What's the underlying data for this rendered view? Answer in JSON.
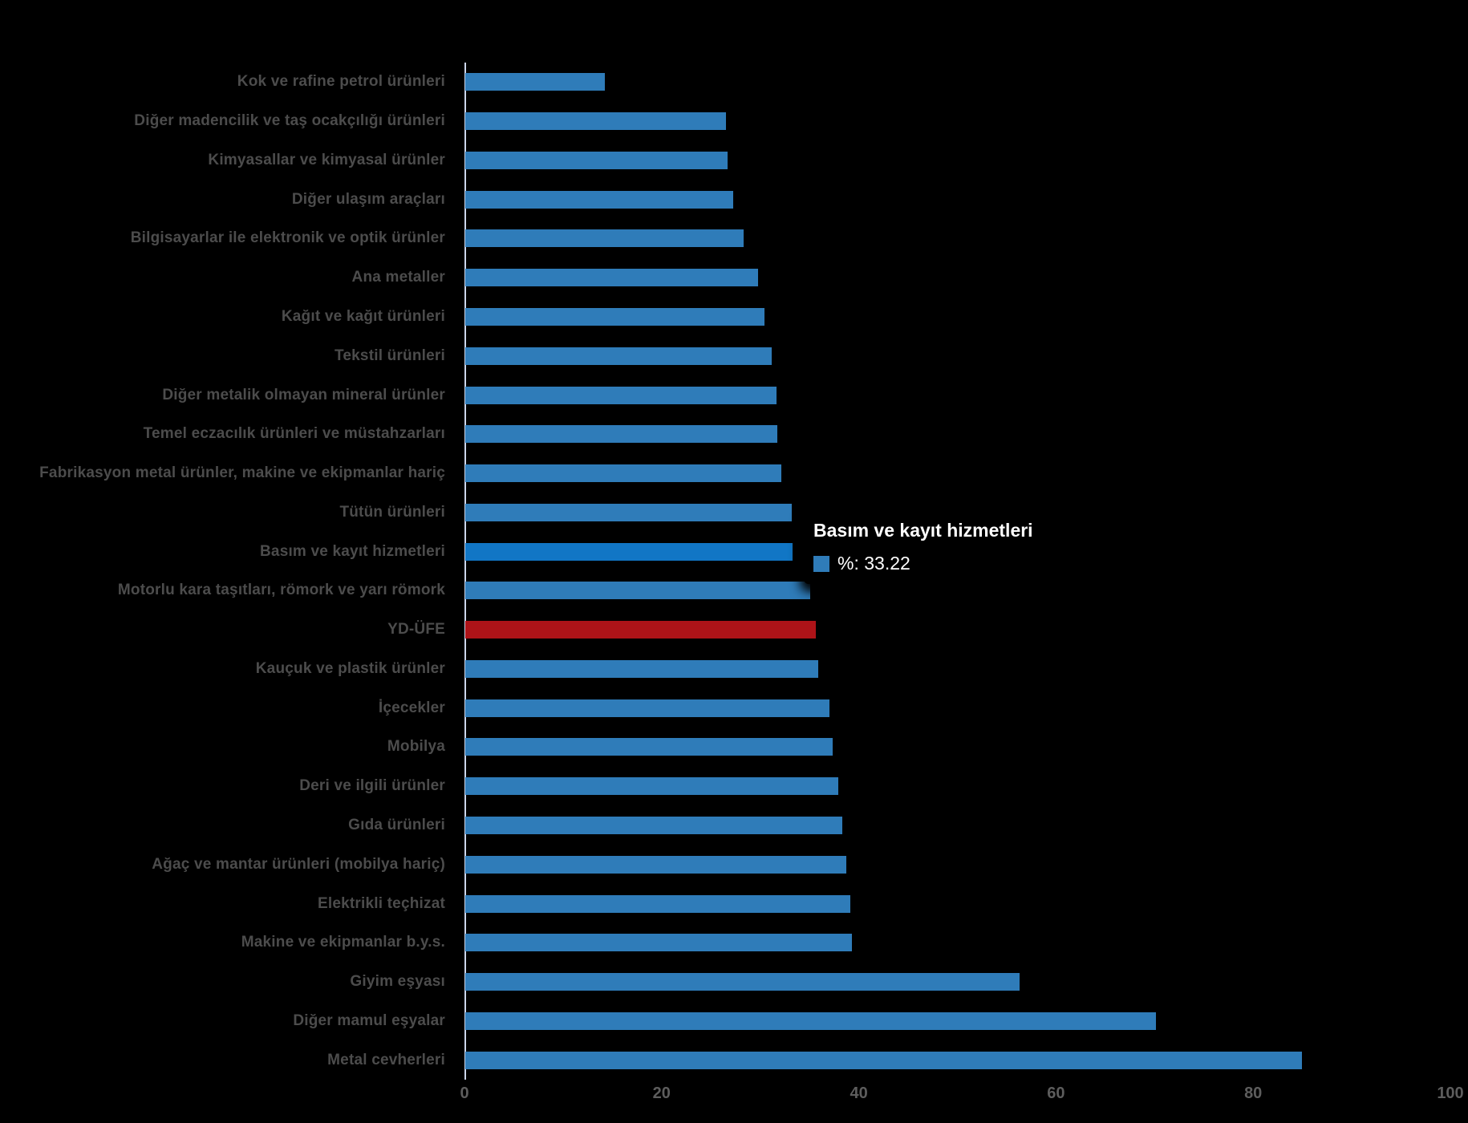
{
  "chart_data": {
    "type": "bar",
    "orientation": "horizontal",
    "title": "",
    "xlabel": "",
    "ylabel": "",
    "xlim": [
      0,
      100
    ],
    "x_ticks": [
      0,
      20,
      40,
      60,
      80,
      100
    ],
    "grid": false,
    "legend_position": "none",
    "unit": "%",
    "bar_color": "#2f7cb9",
    "highlight_color": "#1176c5",
    "yd_ufe_color": "#ae1318",
    "axis_line_color": "#ccd6eb",
    "categories": [
      "Kok ve rafine petrol ürünleri",
      "Diğer madencilik ve taş ocakçılığı ürünleri",
      "Kimyasallar ve kimyasal ürünler",
      "Diğer ulaşım araçları",
      "Bilgisayarlar ile elektronik ve optik ürünler",
      "Ana metaller",
      "Kağıt ve kağıt ürünleri",
      "Tekstil ürünleri",
      "Diğer metalik olmayan mineral ürünler",
      "Temel eczacılık ürünleri ve müstahzarları",
      "Fabrikasyon metal ürünler, makine ve ekipmanlar hariç",
      "Tütün ürünleri",
      "Basım ve kayıt hizmetleri",
      "Motorlu kara taşıtları, römork ve yarı römork",
      "YD-ÜFE",
      "Kauçuk ve plastik ürünler",
      "İçecekler",
      "Mobilya",
      "Deri ve ilgili ürünler",
      "Gıda ürünleri",
      "Ağaç ve mantar ürünleri (mobilya hariç)",
      "Elektrikli teçhizat",
      "Makine ve ekipmanlar b.y.s.",
      "Giyim eşyası",
      "Diğer mamul eşyalar",
      "Metal cevherleri"
    ],
    "values": [
      14.13,
      26.43,
      26.57,
      27.14,
      28.22,
      29.66,
      30.39,
      31.12,
      31.53,
      31.66,
      32.02,
      33.1,
      33.22,
      34.97,
      35.52,
      35.79,
      36.9,
      37.28,
      37.82,
      38.23,
      38.64,
      39.05,
      39.18,
      56.2,
      70.03,
      84.83
    ],
    "highlight_index": 12,
    "yd_ufe_index": 14
  },
  "tooltip": {
    "title": "Basım ve kayıt hizmetleri",
    "value_label": "%: 33.22",
    "swatch_color": "#2f7cb9"
  },
  "x_axis": {
    "tick_labels": [
      "0",
      "20",
      "40",
      "60",
      "80",
      "100"
    ]
  }
}
